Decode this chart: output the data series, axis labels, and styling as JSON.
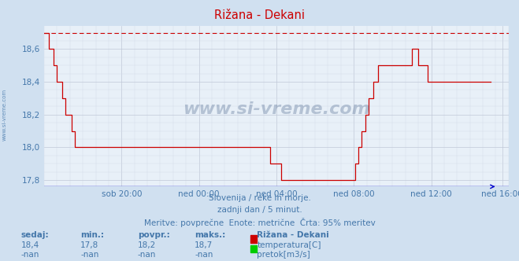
{
  "title": "Rižana - Dekani",
  "bg_color": "#d0e0f0",
  "plot_bg_color": "#e8f0f8",
  "grid_color_major": "#c0c8d8",
  "grid_color_minor": "#d4dce8",
  "line_color": "#cc0000",
  "dashed_line_color": "#cc0000",
  "axis_color": "#0000cc",
  "text_color": "#4477aa",
  "label_color": "#4477aa",
  "yticks": [
    17.8,
    18.0,
    18.2,
    18.4,
    18.6
  ],
  "ylim": [
    17.76,
    18.74
  ],
  "xlim": [
    0,
    288
  ],
  "xtick_labels": [
    "sob 20:00",
    "ned 00:00",
    "ned 04:00",
    "ned 08:00",
    "ned 12:00",
    "ned 16:00"
  ],
  "xtick_positions": [
    48,
    96,
    144,
    192,
    240,
    284
  ],
  "subtitle1": "Slovenija / reke in morje.",
  "subtitle2": "zadnji dan / 5 minut.",
  "subtitle3": "Meritve: povprečne  Enote: metrične  Črta: 95% meritev",
  "stats_headers": [
    "sedaj:",
    "min.:",
    "povpr.:",
    "maks.:"
  ],
  "stats_values_temp": [
    "18,4",
    "17,8",
    "18,2",
    "18,7"
  ],
  "stats_values_pretok": [
    "-nan",
    "-nan",
    "-nan",
    "-nan"
  ],
  "legend_label1": "Rižana - Dekani",
  "legend_label2": "temperatura[C]",
  "legend_label3": "pretok[m3/s]",
  "legend_color1": "#cc0000",
  "legend_color2": "#00cc00",
  "watermark": "www.si-vreme.com",
  "temperature_data": [
    18.7,
    18.7,
    18.7,
    18.6,
    18.6,
    18.6,
    18.5,
    18.5,
    18.4,
    18.4,
    18.4,
    18.3,
    18.3,
    18.2,
    18.2,
    18.2,
    18.2,
    18.1,
    18.1,
    18.0,
    18.0,
    18.0,
    18.0,
    18.0,
    18.0,
    18.0,
    18.0,
    18.0,
    18.0,
    18.0,
    18.0,
    18.0,
    18.0,
    18.0,
    18.0,
    18.0,
    18.0,
    18.0,
    18.0,
    18.0,
    18.0,
    18.0,
    18.0,
    18.0,
    18.0,
    18.0,
    18.0,
    18.0,
    18.0,
    18.0,
    18.0,
    18.0,
    18.0,
    18.0,
    18.0,
    18.0,
    18.0,
    18.0,
    18.0,
    18.0,
    18.0,
    18.0,
    18.0,
    18.0,
    18.0,
    18.0,
    18.0,
    18.0,
    18.0,
    18.0,
    18.0,
    18.0,
    18.0,
    18.0,
    18.0,
    18.0,
    18.0,
    18.0,
    18.0,
    18.0,
    18.0,
    18.0,
    18.0,
    18.0,
    18.0,
    18.0,
    18.0,
    18.0,
    18.0,
    18.0,
    18.0,
    18.0,
    18.0,
    18.0,
    18.0,
    18.0,
    18.0,
    18.0,
    18.0,
    18.0,
    18.0,
    18.0,
    18.0,
    18.0,
    18.0,
    18.0,
    18.0,
    18.0,
    18.0,
    18.0,
    18.0,
    18.0,
    18.0,
    18.0,
    18.0,
    18.0,
    18.0,
    18.0,
    18.0,
    18.0,
    18.0,
    18.0,
    18.0,
    18.0,
    18.0,
    18.0,
    18.0,
    18.0,
    18.0,
    18.0,
    18.0,
    18.0,
    18.0,
    18.0,
    18.0,
    18.0,
    18.0,
    18.0,
    18.0,
    18.0,
    17.9,
    17.9,
    17.9,
    17.9,
    17.9,
    17.9,
    17.9,
    17.8,
    17.8,
    17.8,
    17.8,
    17.8,
    17.8,
    17.8,
    17.8,
    17.8,
    17.8,
    17.8,
    17.8,
    17.8,
    17.8,
    17.8,
    17.8,
    17.8,
    17.8,
    17.8,
    17.8,
    17.8,
    17.8,
    17.8,
    17.8,
    17.8,
    17.8,
    17.8,
    17.8,
    17.8,
    17.8,
    17.8,
    17.8,
    17.8,
    17.8,
    17.8,
    17.8,
    17.8,
    17.8,
    17.8,
    17.8,
    17.8,
    17.8,
    17.8,
    17.8,
    17.8,
    17.8,
    17.9,
    17.9,
    18.0,
    18.0,
    18.1,
    18.1,
    18.2,
    18.2,
    18.3,
    18.3,
    18.3,
    18.4,
    18.4,
    18.4,
    18.5,
    18.5,
    18.5,
    18.5,
    18.5,
    18.5,
    18.5,
    18.5,
    18.5,
    18.5,
    18.5,
    18.5,
    18.5,
    18.5,
    18.5,
    18.5,
    18.5,
    18.5,
    18.5,
    18.5,
    18.5,
    18.6,
    18.6,
    18.6,
    18.6,
    18.5,
    18.5,
    18.5,
    18.5,
    18.5,
    18.5,
    18.4,
    18.4,
    18.4,
    18.4,
    18.4,
    18.4,
    18.4,
    18.4,
    18.4,
    18.4,
    18.4,
    18.4,
    18.4,
    18.4,
    18.4,
    18.4,
    18.4,
    18.4,
    18.4,
    18.4,
    18.4,
    18.4,
    18.4,
    18.4,
    18.4,
    18.4,
    18.4,
    18.4,
    18.4,
    18.4,
    18.4,
    18.4,
    18.4,
    18.4,
    18.4,
    18.4,
    18.4,
    18.4,
    18.4,
    18.4
  ]
}
